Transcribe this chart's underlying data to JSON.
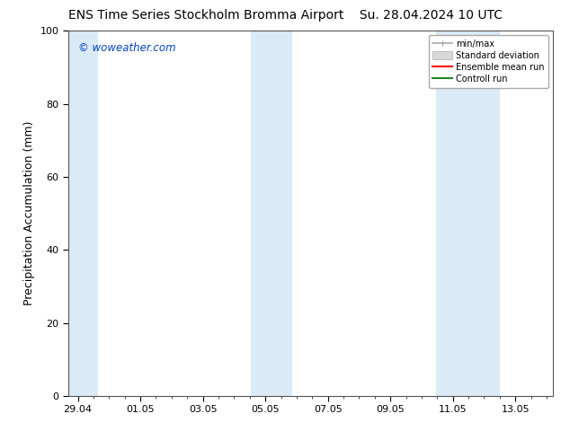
{
  "title_left": "ENS Time Series Stockholm Bromma Airport",
  "title_right": "Su. 28.04.2024 10 UTC",
  "ylabel": "Precipitation Accumulation (mm)",
  "watermark": "© woweather.com",
  "watermark_color": "#0044bb",
  "ylim": [
    0,
    100
  ],
  "yticks": [
    0,
    20,
    40,
    60,
    80,
    100
  ],
  "x_tick_labels": [
    "29.04",
    "01.05",
    "03.05",
    "05.05",
    "07.05",
    "09.05",
    "11.05",
    "13.05"
  ],
  "x_tick_positions": [
    0,
    2,
    4,
    6,
    8,
    10,
    12,
    14
  ],
  "xlim": [
    -0.3,
    15.2
  ],
  "shaded_bands": [
    {
      "x_start": -0.3,
      "x_end": 0.65,
      "color": "#daeaf7"
    },
    {
      "x_start": 5.55,
      "x_end": 6.85,
      "color": "#daeaf7"
    },
    {
      "x_start": 11.45,
      "x_end": 13.5,
      "color": "#daeaf7"
    }
  ],
  "legend_labels": [
    "min/max",
    "Standard deviation",
    "Ensemble mean run",
    "Controll run"
  ],
  "legend_line_colors": [
    "#aaaaaa",
    "#cccccc",
    "#ff0000",
    "#228822"
  ],
  "bg_color": "#ffffff",
  "plot_bg_color": "#ffffff",
  "spine_color": "#555555",
  "title_fontsize": 10,
  "tick_fontsize": 8,
  "ylabel_fontsize": 9
}
